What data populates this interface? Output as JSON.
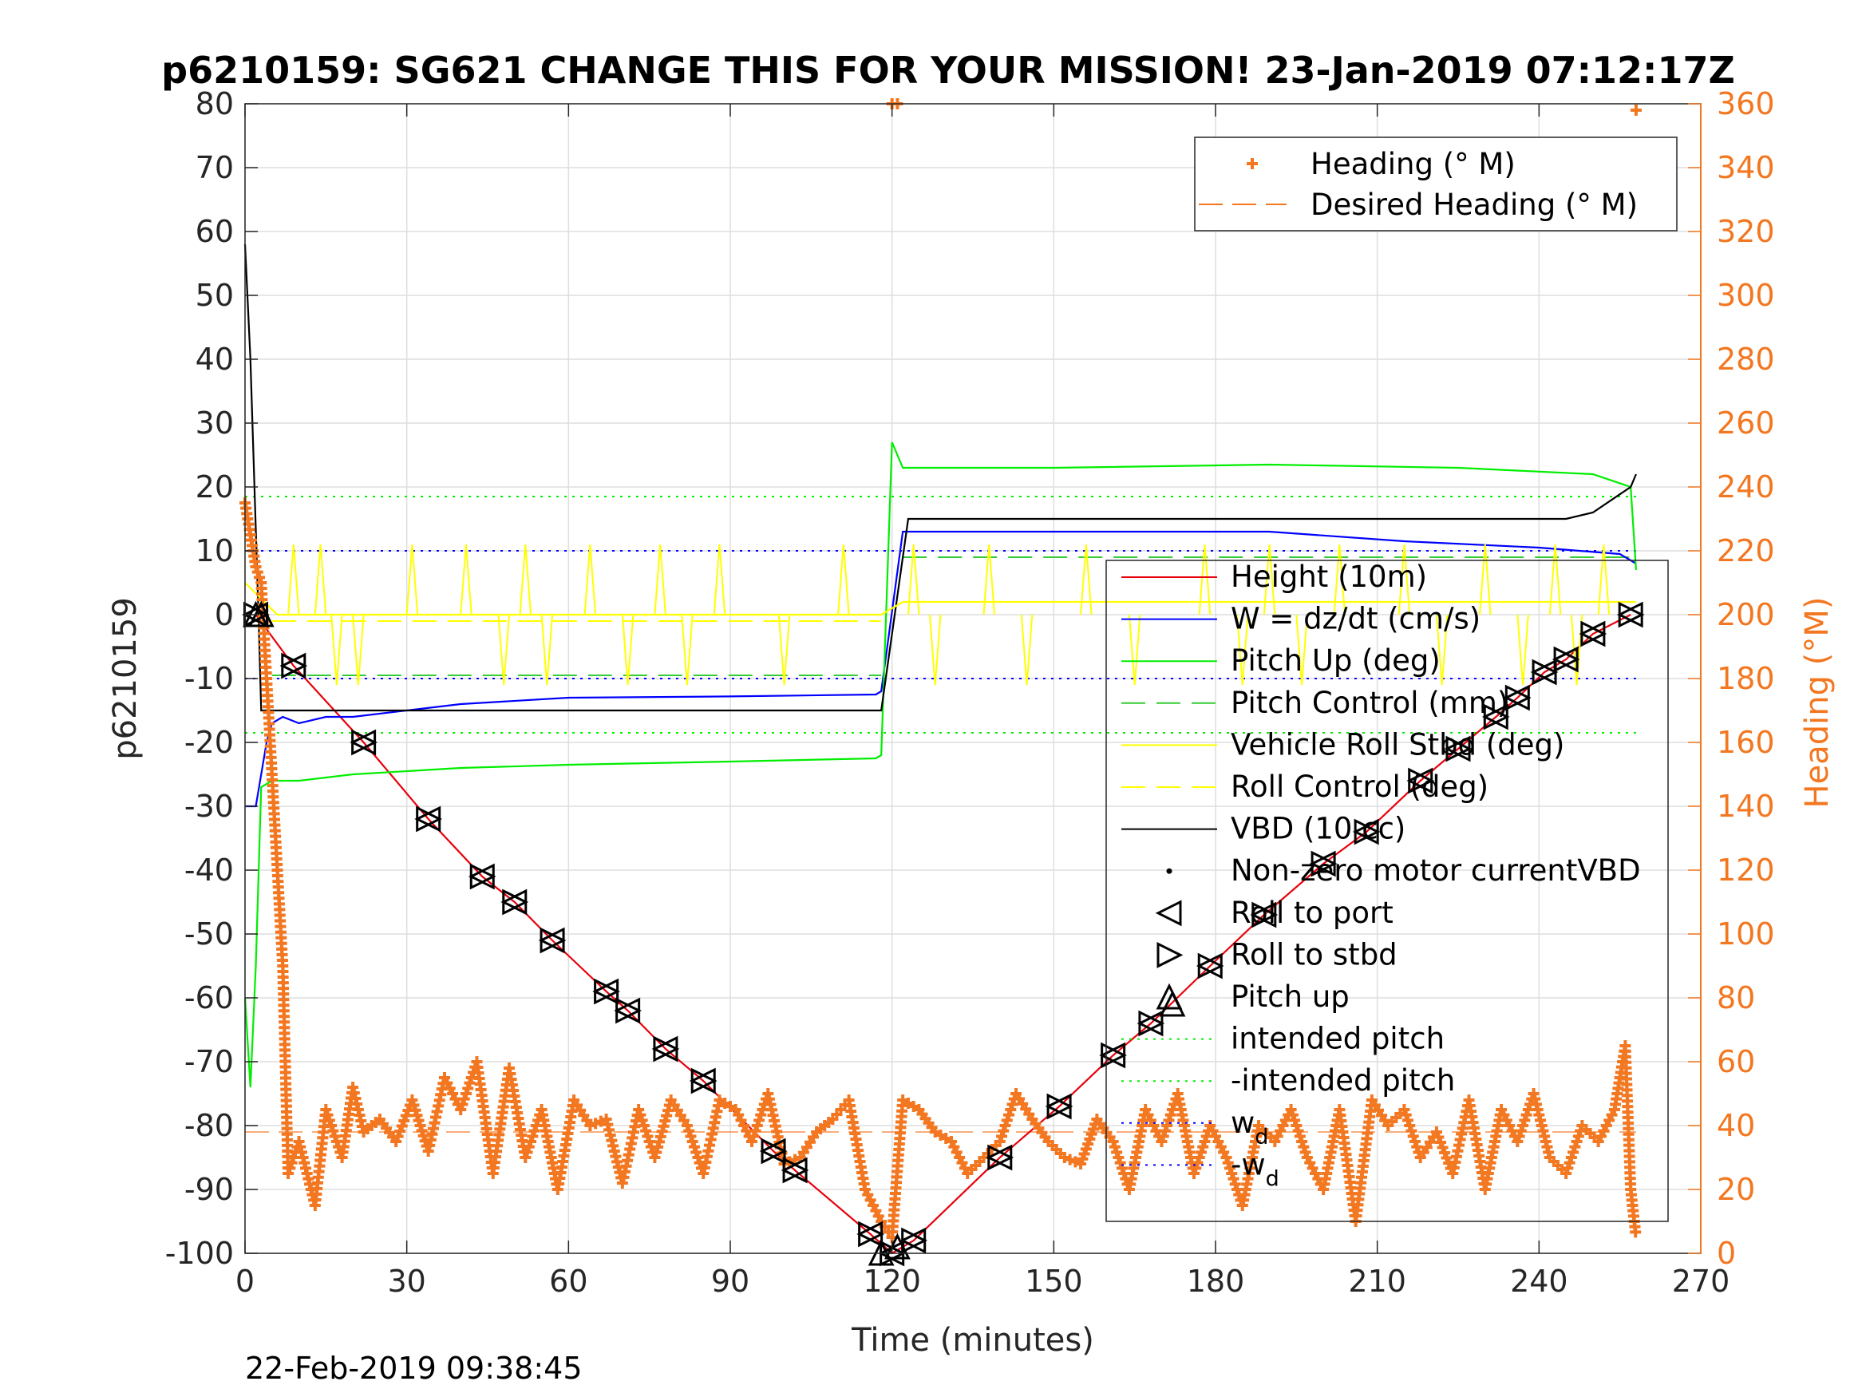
{
  "chart_data": {
    "type": "line",
    "title": "p6210159: SG621 CHANGE THIS FOR YOUR MISSION! 23-Jan-2019 07:12:17Z",
    "xlabel": "Time (minutes)",
    "ylabel": "p6210159",
    "y2label": "Heading (°M)",
    "timestamp": "22-Feb-2019 09:38:45",
    "xlim": [
      0,
      270
    ],
    "ylim": [
      -100,
      80
    ],
    "y2lim": [
      0,
      360
    ],
    "xticks": [
      "0",
      "30",
      "60",
      "90",
      "120",
      "150",
      "180",
      "210",
      "240",
      "270"
    ],
    "yticks": [
      "80",
      "70",
      "60",
      "50",
      "40",
      "30",
      "20",
      "10",
      "0",
      "-10",
      "-20",
      "-30",
      "-40",
      "-50",
      "-60",
      "-70",
      "-80",
      "-90",
      "-100"
    ],
    "y2ticks": [
      "360",
      "340",
      "320",
      "300",
      "280",
      "260",
      "240",
      "220",
      "200",
      "180",
      "160",
      "140",
      "120",
      "100",
      "80",
      "60",
      "40",
      "20",
      "0"
    ],
    "grid": true,
    "legend_heading": {
      "placement": "top-right",
      "entries": [
        "Heading (° M)",
        "Desired Heading (° M)"
      ]
    },
    "legend_main": {
      "placement": "right",
      "entries": [
        "Height (10m)",
        "W = dz/dt (cm/s)",
        "Pitch Up (deg)",
        "Pitch Control (mm)",
        "Vehicle Roll Stbd (deg)",
        "Roll Control (deg)",
        "VBD (10 cc)",
        "Non-zero motor currentVBD",
        "Roll to port",
        "Roll to stbd",
        "Pitch up",
        "intended pitch",
        "-intended pitch",
        "w",
        "-w"
      ],
      "subscript": "d"
    },
    "colors": {
      "height": "#e8000b",
      "w": "#0000ff",
      "pitch": "#00ee00",
      "roll": "#ffff00",
      "vbd": "#000000",
      "heading": "#f37720",
      "axis": "#262626"
    },
    "series": [
      {
        "name": "Height (10m)",
        "x": [
          2,
          9,
          22,
          34,
          44,
          50,
          57,
          67,
          71,
          78,
          85,
          98,
          102,
          116,
          120,
          124,
          140,
          151,
          161,
          168,
          179,
          189,
          200,
          208,
          218,
          225,
          232,
          236,
          241,
          245,
          250,
          257
        ],
        "y": [
          0,
          -8,
          -20,
          -32,
          -41,
          -45,
          -51,
          -59,
          -62,
          -68,
          -73,
          -84,
          -87,
          -97,
          -100,
          -98,
          -85,
          -77,
          -69,
          -64,
          -55,
          -47,
          -39,
          -34,
          -26,
          -21,
          -16,
          -13,
          -9,
          -7,
          -3,
          0
        ]
      },
      {
        "name": "W = dz/dt (cm/s)",
        "x": [
          0,
          2,
          3,
          4,
          5,
          7,
          10,
          15,
          20,
          30,
          40,
          60,
          90,
          117,
          118,
          122,
          150,
          190,
          215,
          240,
          255,
          258
        ],
        "y": [
          -30,
          -30,
          -25,
          -20,
          -17,
          -16,
          -17,
          -16,
          -16,
          -15,
          -14,
          -13,
          -12.8,
          -12.5,
          -12,
          13,
          13,
          13,
          11.5,
          10.5,
          9.5,
          8
        ]
      },
      {
        "name": "Pitch Up (deg)",
        "x": [
          0,
          1,
          2,
          3,
          5,
          10,
          20,
          40,
          60,
          90,
          117,
          118,
          120,
          121,
          122,
          150,
          190,
          225,
          250,
          257,
          258
        ],
        "y": [
          -60,
          -74,
          -55,
          -27,
          -26,
          -26,
          -25,
          -24,
          -23.5,
          -23,
          -22.5,
          -22,
          27,
          25,
          23,
          23,
          23.5,
          23,
          22,
          20,
          7
        ]
      },
      {
        "name": "VBD (10 cc)",
        "x": [
          0,
          1,
          2.5,
          3,
          117,
          118,
          123,
          245,
          250,
          257,
          258
        ],
        "y": [
          58,
          40,
          0,
          -15,
          -15,
          -15,
          15,
          15,
          16,
          20,
          22
        ]
      },
      {
        "name": "Heading (° M)",
        "x": [
          0,
          1,
          2,
          3,
          4,
          5,
          6,
          7,
          8,
          10,
          13,
          15,
          18,
          20,
          22,
          25,
          28,
          31,
          34,
          37,
          40,
          43,
          46,
          49,
          52,
          55,
          58,
          61,
          64,
          67,
          70,
          73,
          76,
          79,
          82,
          85,
          88,
          91,
          94,
          97,
          100,
          103,
          106,
          109,
          112,
          115,
          118,
          120,
          122,
          125,
          128,
          131,
          134,
          137,
          140,
          143,
          146,
          149,
          152,
          155,
          158,
          161,
          164,
          167,
          170,
          173,
          176,
          179,
          182,
          185,
          188,
          191,
          194,
          197,
          200,
          203,
          206,
          209,
          212,
          215,
          218,
          221,
          224,
          227,
          230,
          233,
          236,
          239,
          242,
          245,
          248,
          251,
          254,
          256,
          257,
          258
        ],
        "y": [
          235,
          225,
          215,
          210,
          180,
          150,
          120,
          90,
          25,
          35,
          15,
          45,
          30,
          52,
          38,
          42,
          35,
          48,
          32,
          55,
          45,
          60,
          25,
          58,
          30,
          45,
          20,
          48,
          40,
          42,
          22,
          45,
          30,
          48,
          40,
          25,
          48,
          45,
          35,
          50,
          28,
          30,
          38,
          42,
          48,
          20,
          10,
          5,
          48,
          45,
          38,
          35,
          25,
          30,
          35,
          50,
          42,
          35,
          30,
          28,
          42,
          35,
          20,
          45,
          35,
          50,
          25,
          40,
          30,
          15,
          40,
          35,
          45,
          30,
          20,
          45,
          10,
          48,
          40,
          45,
          30,
          38,
          25,
          48,
          20,
          45,
          35,
          50,
          30,
          25,
          40,
          35,
          45,
          65,
          20,
          5
        ]
      },
      {
        "name": "Vehicle Roll Stbd (deg)",
        "x": [
          0,
          6,
          20,
          60,
          118,
          122,
          250,
          258
        ],
        "y": [
          5,
          0,
          0,
          0,
          0,
          2,
          2,
          2
        ]
      }
    ],
    "desired_heading": 38,
    "intended_pitch": 18.5,
    "w_d": 10,
    "heading_top_markers": [
      [
        120,
        360
      ],
      [
        121,
        360
      ],
      [
        258,
        358
      ]
    ]
  }
}
